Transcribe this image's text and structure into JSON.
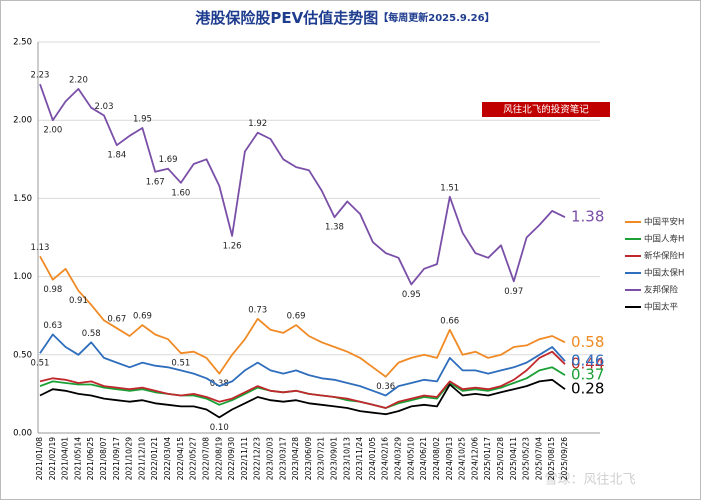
{
  "title": "港股保险股PEV估值走势图",
  "subtitle": "【每周更新2025.9.26】",
  "note": "风往北飞的投资笔记",
  "watermark": "雪球：风往北飞",
  "chart_data": {
    "type": "line",
    "categories": [
      "2021/01/08",
      "2021/02/19",
      "2021/04/01",
      "2021/05/14",
      "2021/06/25",
      "2021/08/07",
      "2021/09/17",
      "2021/10/29",
      "2021/12/10",
      "2022/01/21",
      "2022/03/04",
      "2022/04/15",
      "2022/05/27",
      "2022/07/08",
      "2022/08/19",
      "2022/09/30",
      "2022/11/11",
      "2022/12/23",
      "2023/02/03",
      "2023/03/17",
      "2023/04/28",
      "2023/06/09",
      "2023/07/21",
      "2023/09/01",
      "2023/10/13",
      "2023/11/24",
      "2024/01/05",
      "2024/02/16",
      "2024/03/29",
      "2024/05/10",
      "2024/06/21",
      "2024/08/02",
      "2024/09/13",
      "2024/10/25",
      "2024/12/06",
      "2025/01/17",
      "2025/02/28",
      "2025/04/11",
      "2025/05/23",
      "2025/07/04",
      "2025/08/15",
      "2025/09/26"
    ],
    "series": [
      {
        "name": "中国平安H",
        "color": "#f08a24",
        "values": [
          1.13,
          0.98,
          1.05,
          0.91,
          0.82,
          0.72,
          0.67,
          0.62,
          0.69,
          0.63,
          0.6,
          0.51,
          0.52,
          0.48,
          0.38,
          0.5,
          0.6,
          0.73,
          0.66,
          0.64,
          0.69,
          0.62,
          0.58,
          0.55,
          0.52,
          0.48,
          0.42,
          0.36,
          0.45,
          0.48,
          0.5,
          0.48,
          0.66,
          0.5,
          0.52,
          0.48,
          0.5,
          0.55,
          0.56,
          0.6,
          0.62,
          0.58
        ],
        "value_labels": [
          "1.13",
          "0.98",
          null,
          "0.91",
          null,
          null,
          "0.67",
          null,
          "0.69",
          null,
          null,
          "0.51",
          null,
          null,
          "0.38",
          null,
          null,
          "0.73",
          null,
          null,
          "0.69",
          null,
          null,
          null,
          null,
          null,
          null,
          "0.36",
          null,
          null,
          null,
          null,
          "0.66",
          null,
          null,
          null,
          null,
          null,
          null,
          null,
          null,
          "0.58"
        ]
      },
      {
        "name": "中国人寿H",
        "color": "#1aa035",
        "values": [
          0.3,
          0.33,
          0.32,
          0.31,
          0.31,
          0.29,
          0.28,
          0.27,
          0.28,
          0.26,
          0.25,
          0.24,
          0.24,
          0.22,
          0.18,
          0.21,
          0.25,
          0.29,
          0.27,
          0.26,
          0.27,
          0.25,
          0.24,
          0.23,
          0.21,
          0.2,
          0.18,
          0.16,
          0.19,
          0.21,
          0.23,
          0.22,
          0.32,
          0.27,
          0.28,
          0.27,
          0.29,
          0.32,
          0.35,
          0.4,
          0.42,
          0.37
        ],
        "value_labels": [
          null,
          null,
          null,
          null,
          null,
          null,
          null,
          null,
          null,
          null,
          null,
          null,
          null,
          null,
          null,
          null,
          null,
          null,
          null,
          null,
          null,
          null,
          null,
          null,
          null,
          null,
          null,
          null,
          null,
          null,
          null,
          null,
          null,
          null,
          null,
          null,
          null,
          null,
          null,
          null,
          null,
          "0.37"
        ]
      },
      {
        "name": "新华保险H",
        "color": "#c0282d",
        "values": [
          0.33,
          0.35,
          0.34,
          0.32,
          0.33,
          0.3,
          0.29,
          0.28,
          0.29,
          0.27,
          0.25,
          0.24,
          0.25,
          0.23,
          0.2,
          0.22,
          0.26,
          0.3,
          0.27,
          0.26,
          0.27,
          0.25,
          0.24,
          0.23,
          0.22,
          0.2,
          0.18,
          0.16,
          0.2,
          0.22,
          0.24,
          0.23,
          0.33,
          0.28,
          0.29,
          0.28,
          0.3,
          0.34,
          0.4,
          0.48,
          0.52,
          0.44
        ],
        "value_labels": [
          null,
          null,
          null,
          null,
          null,
          null,
          null,
          null,
          null,
          null,
          null,
          null,
          null,
          null,
          null,
          null,
          null,
          null,
          null,
          null,
          null,
          null,
          null,
          null,
          null,
          null,
          null,
          null,
          null,
          null,
          null,
          null,
          null,
          null,
          null,
          null,
          null,
          null,
          null,
          null,
          null,
          "0.44"
        ]
      },
      {
        "name": "中国太保H",
        "color": "#2f6ebd",
        "values": [
          0.51,
          0.63,
          0.55,
          0.5,
          0.58,
          0.48,
          0.45,
          0.42,
          0.45,
          0.43,
          0.42,
          0.4,
          0.38,
          0.35,
          0.3,
          0.33,
          0.4,
          0.45,
          0.4,
          0.38,
          0.4,
          0.37,
          0.35,
          0.34,
          0.32,
          0.3,
          0.27,
          0.24,
          0.3,
          0.32,
          0.34,
          0.33,
          0.48,
          0.4,
          0.4,
          0.38,
          0.4,
          0.42,
          0.45,
          0.5,
          0.55,
          0.46
        ],
        "value_labels": [
          "0.51",
          "0.63",
          null,
          null,
          "0.58",
          null,
          null,
          null,
          null,
          null,
          null,
          null,
          null,
          null,
          null,
          null,
          null,
          null,
          null,
          null,
          null,
          null,
          null,
          null,
          null,
          null,
          null,
          null,
          null,
          null,
          null,
          null,
          null,
          null,
          null,
          null,
          null,
          null,
          null,
          null,
          null,
          "0.46"
        ]
      },
      {
        "name": "友邦保险",
        "color": "#7a4fa8",
        "values": [
          2.23,
          2.0,
          2.12,
          2.2,
          2.08,
          2.03,
          1.84,
          1.9,
          1.95,
          1.67,
          1.69,
          1.6,
          1.72,
          1.75,
          1.58,
          1.26,
          1.8,
          1.92,
          1.88,
          1.75,
          1.7,
          1.68,
          1.55,
          1.38,
          1.48,
          1.4,
          1.22,
          1.15,
          1.12,
          0.95,
          1.05,
          1.08,
          1.51,
          1.28,
          1.15,
          1.12,
          1.2,
          0.97,
          1.25,
          1.33,
          1.42,
          1.38
        ],
        "value_labels": [
          "2.23",
          "2.00",
          null,
          "2.20",
          null,
          "2.03",
          "1.84",
          null,
          "1.95",
          "1.67",
          "1.69",
          "1.60",
          null,
          null,
          null,
          "1.26",
          null,
          "1.92",
          null,
          null,
          null,
          null,
          null,
          "1.38",
          null,
          null,
          null,
          null,
          null,
          "0.95",
          null,
          null,
          "1.51",
          null,
          null,
          null,
          null,
          "0.97",
          null,
          null,
          null,
          "1.38"
        ]
      },
      {
        "name": "中国太平",
        "color": "#000000",
        "values": [
          0.24,
          0.28,
          0.27,
          0.25,
          0.24,
          0.22,
          0.21,
          0.2,
          0.21,
          0.19,
          0.18,
          0.17,
          0.17,
          0.15,
          0.1,
          0.15,
          0.19,
          0.23,
          0.21,
          0.2,
          0.21,
          0.19,
          0.18,
          0.17,
          0.16,
          0.14,
          0.13,
          0.12,
          0.14,
          0.17,
          0.18,
          0.17,
          0.31,
          0.24,
          0.25,
          0.24,
          0.26,
          0.28,
          0.3,
          0.33,
          0.34,
          0.28
        ],
        "value_labels": [
          null,
          null,
          null,
          null,
          null,
          null,
          null,
          null,
          null,
          null,
          null,
          null,
          null,
          null,
          "0.10",
          null,
          null,
          null,
          null,
          null,
          null,
          null,
          null,
          null,
          null,
          null,
          null,
          null,
          null,
          null,
          null,
          null,
          null,
          null,
          null,
          null,
          null,
          null,
          null,
          null,
          null,
          "0.28"
        ]
      }
    ],
    "ylim": [
      0,
      2.5
    ],
    "yticks": [
      {
        "value": 0,
        "label": "0.00"
      },
      {
        "value": 0.5,
        "label": "0.50"
      },
      {
        "value": 1,
        "label": "1.00"
      },
      {
        "value": 1.5,
        "label": "1.50"
      },
      {
        "value": 2,
        "label": "2.00"
      },
      {
        "value": 2.5,
        "label": "2.50"
      }
    ],
    "grid": true,
    "legend": "right"
  }
}
